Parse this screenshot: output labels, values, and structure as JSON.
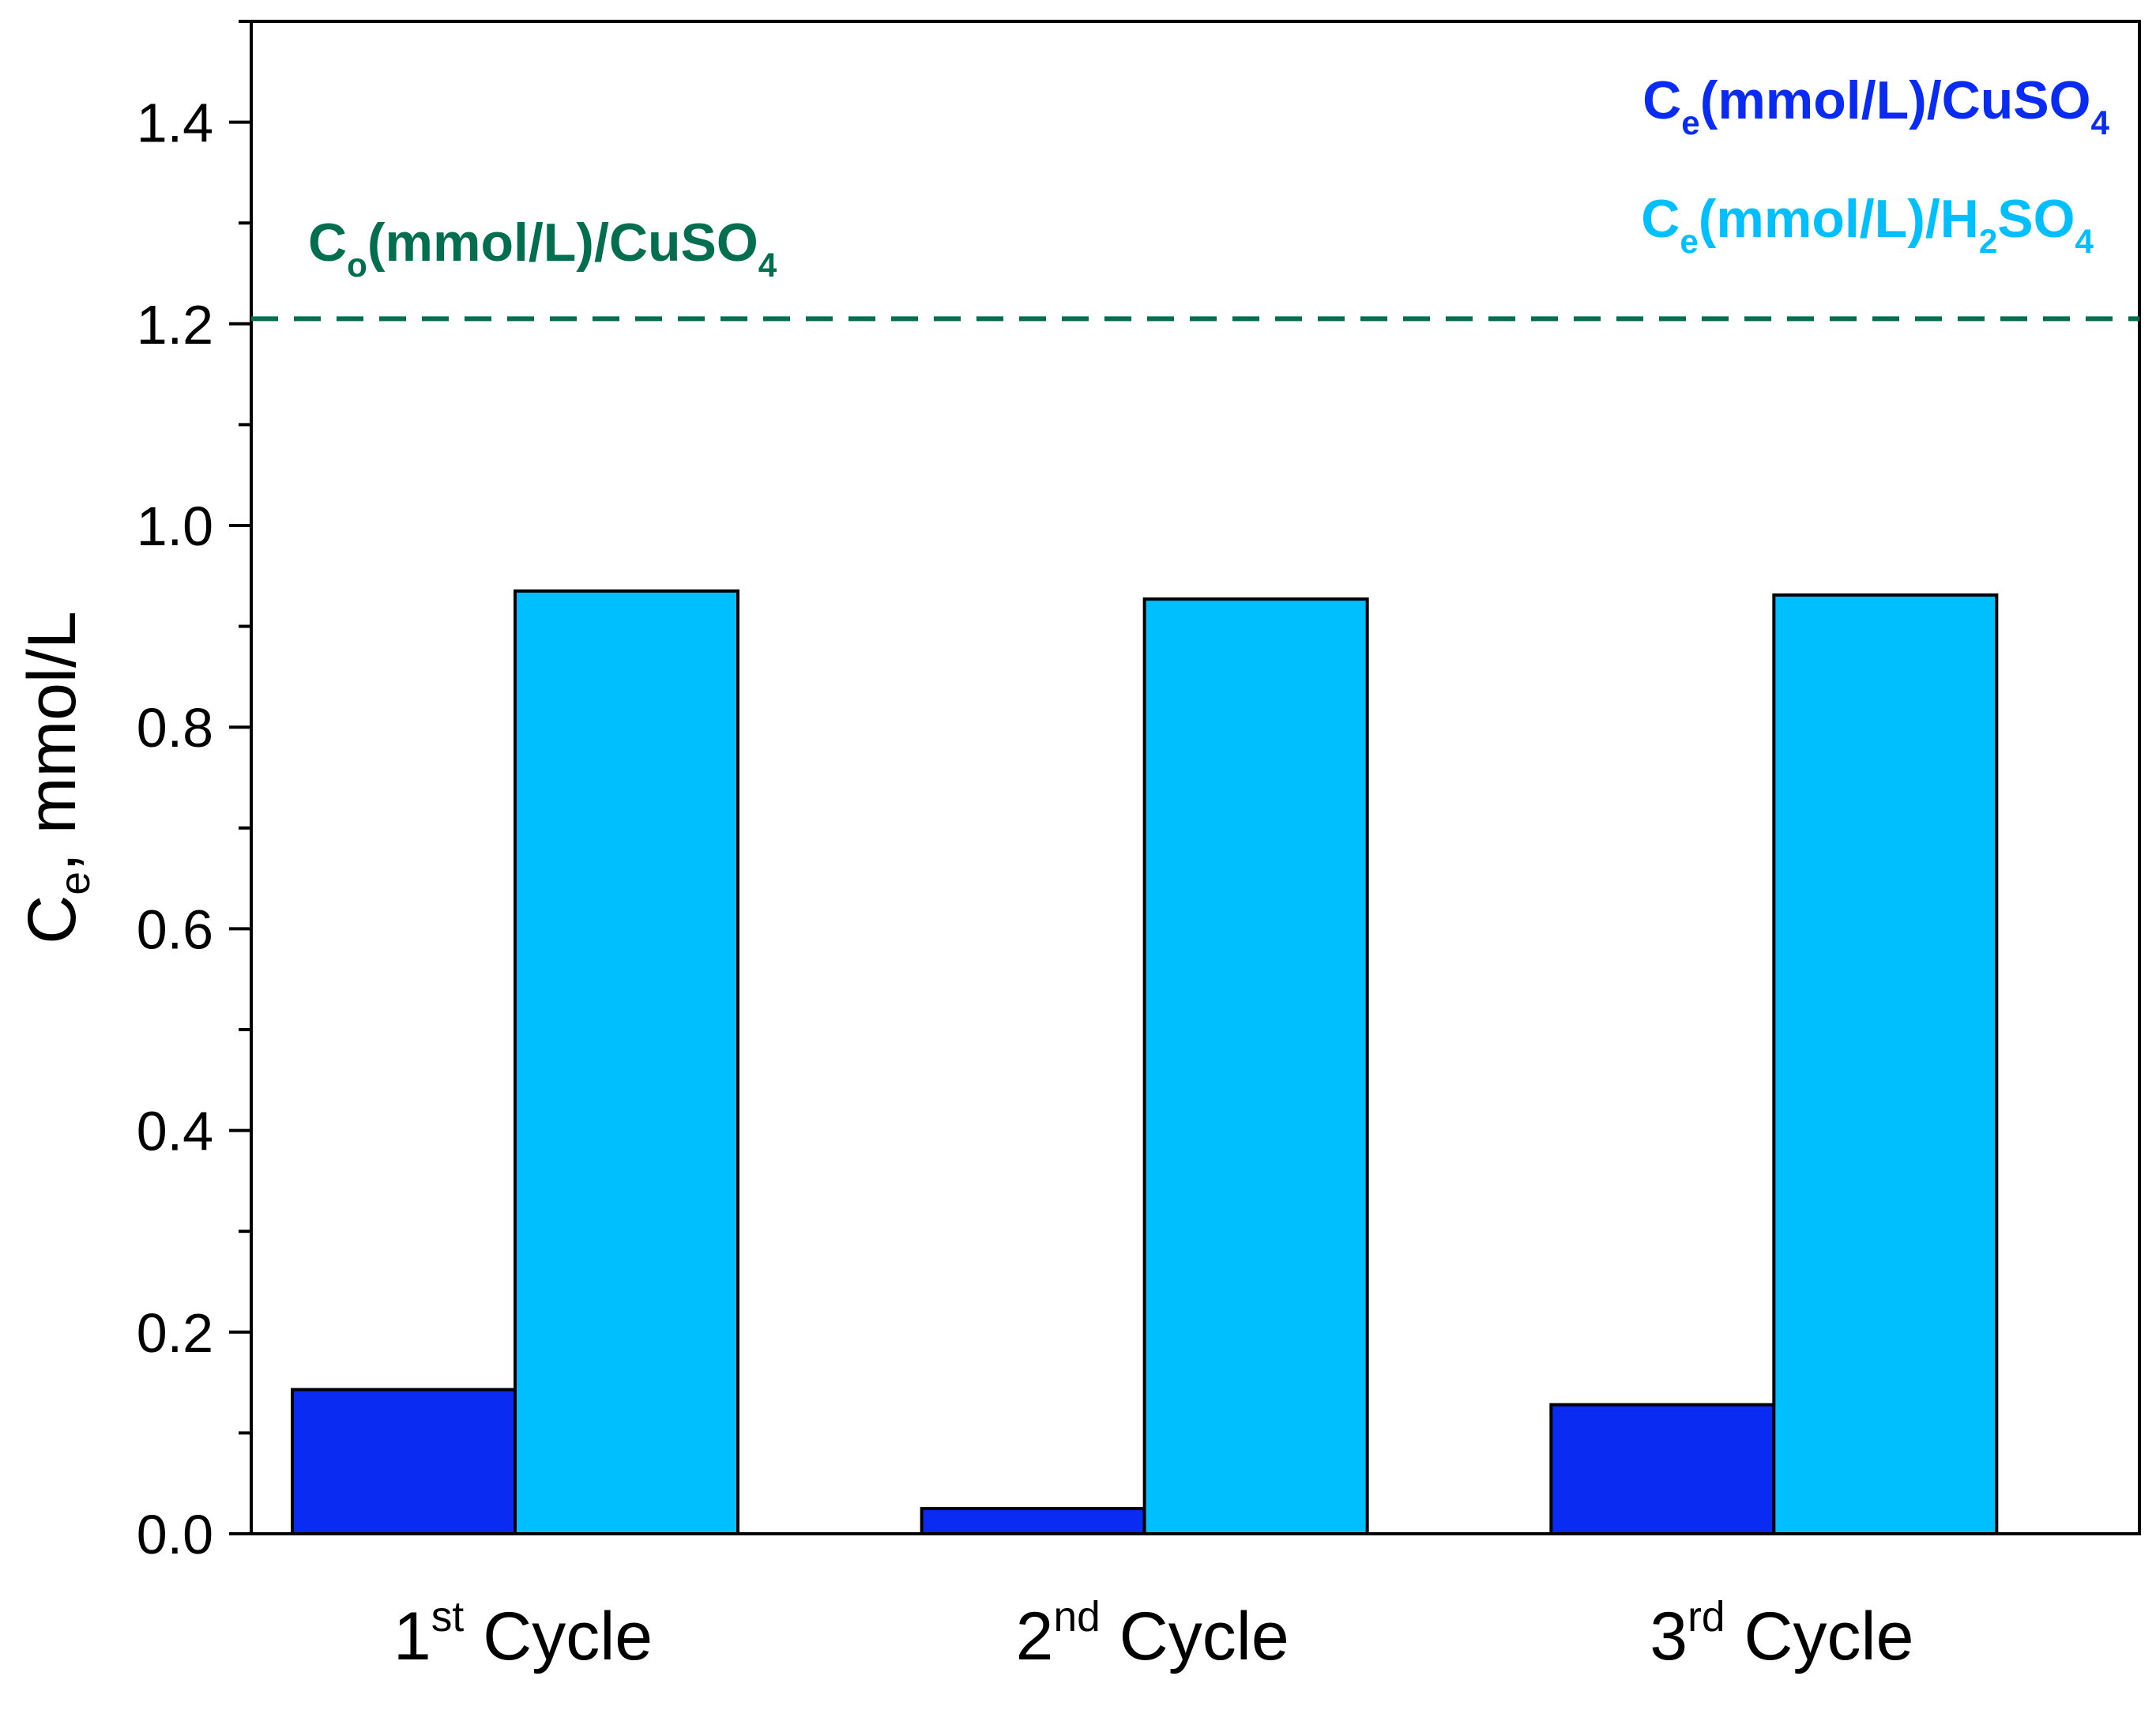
{
  "chart_data": {
    "type": "bar",
    "categories": [
      {
        "num": "1",
        "sup": "st",
        "rest": " Cycle"
      },
      {
        "num": "2",
        "sup": "nd",
        "rest": " Cycle"
      },
      {
        "num": "3",
        "sup": "rd",
        "rest": " Cycle"
      }
    ],
    "series": [
      {
        "name": {
          "main": "C",
          "sub1": "e",
          "mid": "(mmol/L)/CuSO",
          "sub2": "4",
          "end": ""
        },
        "color": "#0a2cf2",
        "values": [
          0.143,
          0.025,
          0.128
        ]
      },
      {
        "name": {
          "main": "C",
          "sub1": "e",
          "mid": "(mmol/L)/H",
          "sub2": "2",
          "end": "SO",
          "sub3": "4"
        },
        "color": "#00bfff",
        "values": [
          0.935,
          0.927,
          0.931
        ]
      }
    ],
    "reference_line": {
      "value": 1.205,
      "color": "#006e4f",
      "style": "dashed",
      "label": {
        "main": "C",
        "sub1": "o",
        "mid": "(mmol/L)/CuSO",
        "sub2": "4"
      }
    },
    "ylabel": {
      "main": "C",
      "sub": "e",
      "rest": ", mmol/L"
    },
    "xlabel": "",
    "title": "",
    "ylim": [
      0,
      1.5
    ],
    "yticks": [
      "0.0",
      "0.2",
      "0.4",
      "0.6",
      "0.8",
      "1.0",
      "1.2",
      "1.4"
    ],
    "grid": false,
    "legend_position": "top-right"
  }
}
